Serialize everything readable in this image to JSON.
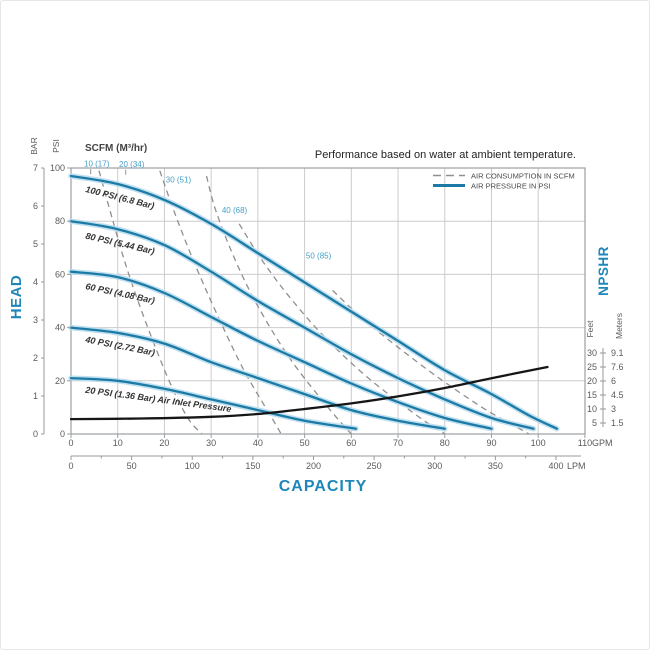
{
  "title": "Performance based on water at ambient temperature.",
  "scfm_header": "SCFM (M³/hr)",
  "axes": {
    "head_label": "HEAD",
    "capacity_label": "CAPACITY",
    "npshr_label": "NPSHR",
    "bar_label": "BAR",
    "psi_label": "PSI",
    "feet_label": "Feet",
    "meters_label": "Meters",
    "gpm_suffix": "GPM",
    "lpm_suffix": "LPM",
    "bar_ticks": [
      7,
      6,
      5,
      4,
      3,
      2,
      1,
      0
    ],
    "psi_ticks": [
      100,
      80,
      60,
      40,
      20,
      0
    ],
    "gpm_ticks": [
      0,
      10,
      20,
      30,
      40,
      50,
      60,
      70,
      80,
      90,
      100,
      110
    ],
    "lpm_ticks": [
      0,
      50,
      100,
      150,
      200,
      250,
      300,
      350,
      400
    ],
    "feet_ticks": [
      "30",
      "25",
      "20",
      "15",
      "10",
      "5"
    ],
    "meters_ticks": [
      "9.1",
      "7.6",
      "6",
      "4.5",
      "3",
      "1.5"
    ]
  },
  "legend": [
    {
      "label": "AIR CONSUMPTION IN SCFM",
      "style": "dashed"
    },
    {
      "label": "AIR PRESSURE IN PSI",
      "style": "solid"
    }
  ],
  "colors": {
    "teal_line": "#1b7aa6",
    "teal_halo": "#b9dded",
    "teal_text": "#1e86b8",
    "scfm_text": "#45a1c7",
    "dashed_gray": "#8f8f8f",
    "npshr_black": "#161616",
    "grid": "#cccccc",
    "frame": "#9aa0a3",
    "axis_gray": "#999999"
  },
  "chart_data": {
    "type": "line",
    "title": "Performance based on water at ambient temperature.",
    "xlabel": "CAPACITY",
    "ylabel_left": "HEAD",
    "ylabel_right": "NPSHR",
    "x_range_gpm": [
      0,
      110
    ],
    "x_range_lpm": [
      0,
      400
    ],
    "y_range_psi": [
      0,
      100
    ],
    "y_range_bar": [
      0,
      7
    ],
    "npshr_range_feet": [
      5,
      30
    ],
    "grid": true,
    "legend_position": "top-right",
    "pressure_curves": [
      {
        "name": "100psi",
        "label": "100 PSI (6.8 Bar)",
        "label_pos": [
          3,
          91
        ],
        "label_angle": 14,
        "points": [
          [
            0,
            97
          ],
          [
            10,
            94
          ],
          [
            20,
            88
          ],
          [
            30,
            79
          ],
          [
            40,
            68
          ],
          [
            50,
            57
          ],
          [
            60,
            46
          ],
          [
            70,
            35
          ],
          [
            80,
            24
          ],
          [
            90,
            15
          ],
          [
            98,
            7
          ],
          [
            104,
            2
          ]
        ]
      },
      {
        "name": "80psi",
        "label": "80 PSI (5.44 Bar)",
        "label_pos": [
          3,
          73.5
        ],
        "label_angle": 13,
        "points": [
          [
            0,
            80
          ],
          [
            10,
            77
          ],
          [
            20,
            71
          ],
          [
            30,
            61
          ],
          [
            40,
            50
          ],
          [
            50,
            40
          ],
          [
            60,
            30
          ],
          [
            70,
            21
          ],
          [
            80,
            13
          ],
          [
            90,
            6
          ],
          [
            99,
            2
          ]
        ]
      },
      {
        "name": "60psi",
        "label": "60 PSI (4.08 Bar)",
        "label_pos": [
          3,
          54.5
        ],
        "label_angle": 12,
        "points": [
          [
            0,
            61
          ],
          [
            10,
            59
          ],
          [
            20,
            53
          ],
          [
            30,
            44
          ],
          [
            40,
            35
          ],
          [
            50,
            27
          ],
          [
            60,
            19
          ],
          [
            70,
            12
          ],
          [
            80,
            6
          ],
          [
            90,
            2
          ]
        ]
      },
      {
        "name": "40psi",
        "label": "40 PSI (2.72 Bar)",
        "label_pos": [
          3,
          34.5
        ],
        "label_angle": 11,
        "points": [
          [
            0,
            40
          ],
          [
            10,
            38
          ],
          [
            20,
            34
          ],
          [
            30,
            27
          ],
          [
            40,
            21
          ],
          [
            50,
            15
          ],
          [
            60,
            9
          ],
          [
            70,
            5
          ],
          [
            80,
            2
          ]
        ]
      },
      {
        "name": "20psi",
        "label": "20 PSI (1.36 Bar) Air Inlet Pressure",
        "label_pos": [
          3,
          15.5
        ],
        "label_angle": 7.5,
        "points": [
          [
            0,
            21
          ],
          [
            10,
            20
          ],
          [
            20,
            17
          ],
          [
            30,
            13
          ],
          [
            40,
            9
          ],
          [
            50,
            5
          ],
          [
            61,
            2
          ]
        ]
      }
    ],
    "air_consumption_curves": [
      {
        "scfm": 10,
        "label": "10 (17)",
        "label_pos": [
          5.5,
          100.5
        ],
        "leader": true,
        "points": [
          [
            6,
            99
          ],
          [
            9,
            80
          ],
          [
            12,
            62
          ],
          [
            16,
            42
          ],
          [
            21,
            20
          ],
          [
            25,
            6
          ],
          [
            28,
            0
          ]
        ]
      },
      {
        "scfm": 20,
        "label": "20 (34)",
        "label_pos": [
          13,
          100.3
        ],
        "leader": true,
        "points": [
          [
            19,
            99
          ],
          [
            22,
            84
          ],
          [
            26,
            66
          ],
          [
            31,
            46
          ],
          [
            37,
            24
          ],
          [
            43,
            6
          ],
          [
            45,
            0
          ]
        ]
      },
      {
        "scfm": 30,
        "label": "30 (51)",
        "label_pos": [
          23,
          94.5
        ],
        "leader": false,
        "points": [
          [
            29,
            97
          ],
          [
            31,
            84
          ],
          [
            35,
            66
          ],
          [
            40,
            48
          ],
          [
            47,
            28
          ],
          [
            55,
            10
          ],
          [
            60,
            0
          ]
        ]
      },
      {
        "scfm": 40,
        "label": "40 (68)",
        "label_pos": [
          35,
          83
        ],
        "leader": false,
        "points": [
          [
            36,
            79
          ],
          [
            41,
            65
          ],
          [
            47,
            51
          ],
          [
            54,
            37
          ],
          [
            63,
            22
          ],
          [
            74,
            7
          ],
          [
            80,
            0
          ]
        ]
      },
      {
        "scfm": 50,
        "label": "50 (85)",
        "label_pos": [
          53,
          66
        ],
        "leader": false,
        "points": [
          [
            56,
            54
          ],
          [
            62,
            44
          ],
          [
            69,
            34
          ],
          [
            78,
            22
          ],
          [
            88,
            10
          ],
          [
            95,
            3
          ],
          [
            98,
            0
          ]
        ]
      }
    ],
    "npshr_curve": {
      "units": "gpm_vs_feet",
      "points": [
        [
          0,
          6.4
        ],
        [
          15,
          6.6
        ],
        [
          30,
          7.2
        ],
        [
          40,
          8.2
        ],
        [
          50,
          10
        ],
        [
          60,
          12
        ],
        [
          70,
          14.5
        ],
        [
          80,
          17.5
        ],
        [
          90,
          21
        ],
        [
          102,
          25
        ]
      ]
    }
  }
}
